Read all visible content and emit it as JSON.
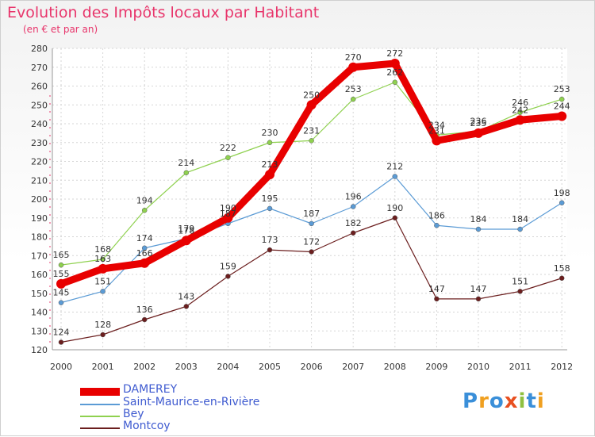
{
  "chart_data": {
    "type": "line",
    "title": "Evolution des Impôts locaux par Habitant",
    "subtitle": "(en € et par an)",
    "x": [
      "2000",
      "2001",
      "2002",
      "2003",
      "2004",
      "2005",
      "2006",
      "2007",
      "2008",
      "2009",
      "2010",
      "2011",
      "2012"
    ],
    "ylim": [
      120,
      280
    ],
    "yticks": [
      120,
      130,
      140,
      150,
      160,
      170,
      180,
      190,
      200,
      210,
      220,
      230,
      240,
      250,
      260,
      270,
      280
    ],
    "grid": true,
    "legend_position": "bottom-left",
    "series": [
      {
        "name": "DAMEREY",
        "color": "#e80000",
        "values": [
          155,
          163,
          166,
          178,
          190,
          213,
          250,
          270,
          272,
          231,
          235,
          242,
          244
        ],
        "labels": [
          "155",
          "163",
          "166",
          "178",
          "190",
          "213",
          "250",
          "270",
          "272",
          "231",
          "235",
          "242",
          "244"
        ]
      },
      {
        "name": "Saint-Maurice-en-Rivière",
        "color": "#5b9bd5",
        "values": [
          145,
          151,
          174,
          179,
          187,
          195,
          187,
          196,
          212,
          186,
          184,
          184,
          198
        ],
        "labels": [
          "145",
          "151",
          "174",
          "179",
          "187",
          "195",
          "187",
          "196",
          "212",
          "186",
          "184",
          "184",
          "198"
        ]
      },
      {
        "name": "Bey",
        "color": "#8fd14f",
        "values": [
          165,
          168,
          194,
          214,
          222,
          230,
          231,
          253,
          262,
          234,
          236,
          246,
          253
        ],
        "labels": [
          "165",
          "168",
          "194",
          "214",
          "222",
          "230",
          "231",
          "253",
          "262",
          "234",
          "236",
          "246",
          "253"
        ]
      },
      {
        "name": "Montcoy",
        "color": "#6b1e1e",
        "values": [
          124,
          128,
          136,
          143,
          159,
          173,
          172,
          182,
          190,
          147,
          147,
          151,
          158
        ],
        "labels": [
          "124",
          "128",
          "136",
          "143",
          "159",
          "173",
          "172",
          "182",
          "190",
          "147",
          "147",
          "151",
          "158"
        ]
      }
    ]
  },
  "brand": {
    "text": "Proxiti"
  }
}
